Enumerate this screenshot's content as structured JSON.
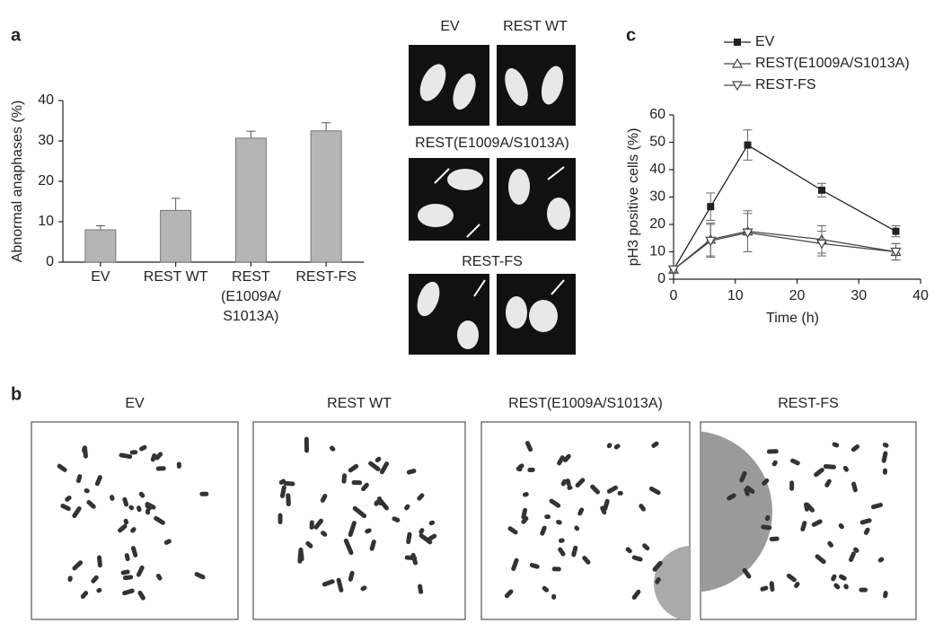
{
  "panel_labels": [
    "a",
    "b",
    "c"
  ],
  "chart_data": [
    {
      "type": "bar",
      "y_label": "Abnormal anaphases (%)",
      "categories": [
        "EV",
        "REST WT",
        "REST\n(E1009A/\nS1013A)",
        "REST-FS"
      ],
      "values": [
        8,
        12.8,
        30.7,
        32.5
      ],
      "errors": [
        1,
        3,
        1.7,
        2
      ],
      "color": "#b5b5b5",
      "ylim": [
        0,
        40
      ],
      "yticks": [
        0,
        10,
        20,
        30,
        40
      ]
    },
    {
      "type": "line",
      "x_label": "Time (h)",
      "y_label": "pH3 positive cells (%)",
      "x": [
        0,
        6,
        12,
        24,
        36
      ],
      "series": [
        {
          "name": "EV",
          "color": "#222222",
          "marker": "square",
          "values": [
            3.5,
            26.5,
            49,
            32.5,
            17.5
          ],
          "errors": [
            1,
            5,
            5.5,
            2.5,
            2
          ]
        },
        {
          "name": "REST(E1009A/S1013A)",
          "color": "#444444",
          "marker": "triangle-up",
          "values": [
            3.5,
            14.5,
            17.5,
            14.5,
            10
          ],
          "errors": [
            1,
            6,
            7.5,
            5,
            3
          ]
        },
        {
          "name": "REST-FS",
          "color": "#444444",
          "marker": "triangle-down",
          "values": [
            3.5,
            14,
            17,
            13,
            10
          ],
          "errors": [
            1,
            6,
            7,
            4.5,
            3
          ]
        }
      ],
      "xlim": [
        0,
        40
      ],
      "xticks": [
        0,
        10,
        20,
        30,
        40
      ],
      "ylim": [
        0,
        60
      ],
      "yticks": [
        0,
        10,
        20,
        30,
        40,
        50,
        60
      ]
    }
  ],
  "micrographs": {
    "columns": [
      "EV",
      "REST WT"
    ],
    "rows": [
      "REST(E1009A/S1013A)",
      "REST-FS"
    ]
  },
  "karyotypes": [
    "EV",
    "REST WT",
    "REST(E1009A/S1013A)",
    "REST-FS"
  ]
}
